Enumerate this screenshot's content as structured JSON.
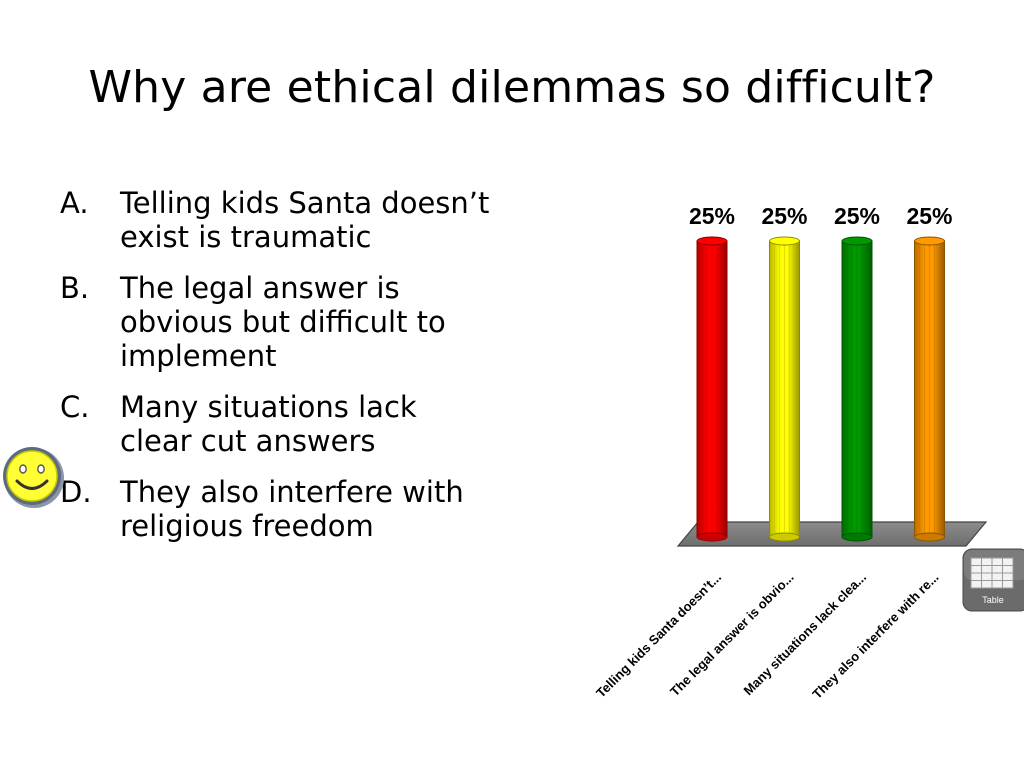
{
  "title": "Why are ethical dilemmas so difficult?",
  "choices": [
    {
      "letter": "A.",
      "text": "Telling kids Santa doesn’t exist is traumatic"
    },
    {
      "letter": "B.",
      "text": "The legal answer is obvious but difficult to implement"
    },
    {
      "letter": "C.",
      "text": "Many situations lack clear cut answers"
    },
    {
      "letter": "D.",
      "text": "They also interfere with religious freedom"
    }
  ],
  "table_button_label": "Table",
  "chart_data": {
    "type": "bar",
    "categories": [
      "Telling kids Santa doesn’t...",
      "The legal answer is obvio...",
      "Many situations lack clea...",
      "They also interfere with re..."
    ],
    "values": [
      25,
      25,
      25,
      25
    ],
    "value_labels": [
      "25%",
      "25%",
      "25%",
      "25%"
    ],
    "colors": [
      "#ff0000",
      "#ffff00",
      "#009900",
      "#ff9900"
    ],
    "ylim": [
      0,
      25
    ],
    "grid": false,
    "legend": "none"
  }
}
